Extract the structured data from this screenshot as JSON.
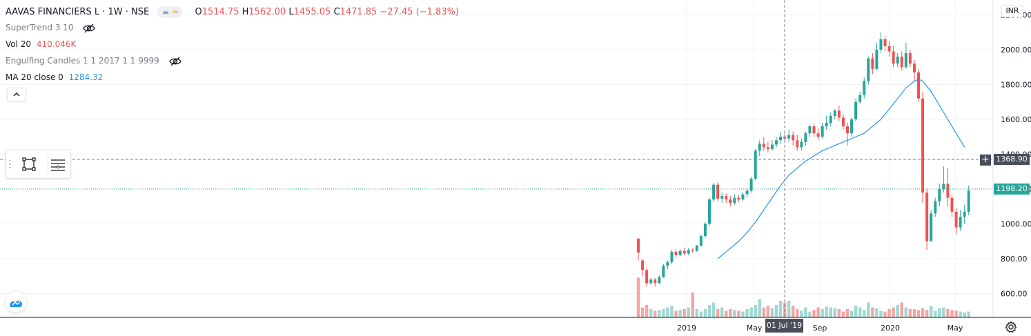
{
  "header": {
    "title": "AAVAS FINANCIERS L · 1W · NSE",
    "ohlc": {
      "o_label": "O",
      "o": "1514.75",
      "h_label": "H",
      "h": "1562.00",
      "l_label": "L",
      "l": "1455.05",
      "c_label": "C",
      "c": "1471.85",
      "change": "−27.45 (−1.83%)"
    }
  },
  "indicators": {
    "supertrend": {
      "name": "SuperTrend 3 10"
    },
    "vol": {
      "name": "Vol 20",
      "value": "410.046K",
      "value_color": "#ef5350"
    },
    "engulfing": {
      "name": "Engulfing Candles 1 1 2017 1 1 9999"
    },
    "ma": {
      "name": "MA 20 close 0",
      "value": "1284.32",
      "value_color": "#2196f3"
    }
  },
  "price_axis": {
    "currency": "INR",
    "ticks": [
      "2200.00",
      "2000.00",
      "1800.00",
      "1600.00",
      "1400.00",
      "1200.00",
      "1000.00",
      "800.00",
      "600.00"
    ],
    "crosshair_label": "1368.90",
    "last_price_label": "1198.20"
  },
  "time_axis": {
    "ticks": [
      "2019",
      "May",
      "Sep",
      "2020",
      "May"
    ],
    "crosshair_label": "01 Jul '19"
  },
  "colors": {
    "up": "#26a69a",
    "down": "#ef5350",
    "ma": "#2196f3",
    "vol_up": "#9fd8d2",
    "vol_down": "#f3a6a4",
    "grid": "#f0f3fa"
  },
  "icons": [
    "eye-off-icon",
    "collapse-chevron-icon",
    "rectangle-tool-icon",
    "lines-tool-icon",
    "tradingview-logo-icon",
    "gear-icon",
    "plus-icon"
  ],
  "chart_data": {
    "type": "candlestick",
    "title": "AAVAS FINANCIERS L · 1W · NSE",
    "y_unit": "INR",
    "ylim": [
      480,
      2260
    ],
    "x_ticks": [
      "2019",
      "May",
      "Sep",
      "2020",
      "May"
    ],
    "candles": [
      [
        915,
        835,
        920,
        790
      ],
      [
        790,
        735,
        800,
        700
      ],
      [
        735,
        660,
        745,
        640
      ],
      [
        660,
        680,
        690,
        650
      ],
      [
        680,
        660,
        690,
        640
      ],
      [
        660,
        695,
        705,
        655
      ],
      [
        695,
        760,
        770,
        690
      ],
      [
        760,
        780,
        790,
        740
      ],
      [
        780,
        840,
        850,
        770
      ],
      [
        840,
        820,
        855,
        810
      ],
      [
        820,
        845,
        855,
        815
      ],
      [
        845,
        830,
        860,
        820
      ],
      [
        830,
        850,
        860,
        820
      ],
      [
        850,
        845,
        860,
        835
      ],
      [
        845,
        875,
        880,
        840
      ],
      [
        875,
        930,
        940,
        870
      ],
      [
        930,
        1000,
        1010,
        920
      ],
      [
        1000,
        1140,
        1150,
        990
      ],
      [
        1140,
        1225,
        1235,
        1125
      ],
      [
        1225,
        1145,
        1240,
        1130
      ],
      [
        1145,
        1160,
        1180,
        1120
      ],
      [
        1160,
        1140,
        1175,
        1120
      ],
      [
        1140,
        1120,
        1160,
        1100
      ],
      [
        1120,
        1150,
        1170,
        1110
      ],
      [
        1150,
        1140,
        1165,
        1125
      ],
      [
        1140,
        1170,
        1180,
        1130
      ],
      [
        1170,
        1190,
        1200,
        1150
      ],
      [
        1190,
        1260,
        1270,
        1180
      ],
      [
        1260,
        1420,
        1430,
        1250
      ],
      [
        1420,
        1460,
        1480,
        1390
      ],
      [
        1460,
        1440,
        1500,
        1420
      ],
      [
        1440,
        1430,
        1470,
        1410
      ],
      [
        1430,
        1455,
        1480,
        1420
      ],
      [
        1455,
        1480,
        1500,
        1440
      ],
      [
        1480,
        1500,
        1530,
        1460
      ],
      [
        1500,
        1490,
        1520,
        1470
      ],
      [
        1490,
        1510,
        1540,
        1470
      ],
      [
        1510,
        1480,
        1530,
        1450
      ],
      [
        1480,
        1440,
        1510,
        1420
      ],
      [
        1440,
        1470,
        1490,
        1420
      ],
      [
        1470,
        1520,
        1530,
        1450
      ],
      [
        1520,
        1560,
        1570,
        1500
      ],
      [
        1560,
        1520,
        1580,
        1500
      ],
      [
        1520,
        1500,
        1550,
        1480
      ],
      [
        1500,
        1560,
        1580,
        1490
      ],
      [
        1560,
        1580,
        1620,
        1540
      ],
      [
        1580,
        1620,
        1640,
        1560
      ],
      [
        1620,
        1650,
        1660,
        1600
      ],
      [
        1650,
        1610,
        1680,
        1590
      ],
      [
        1610,
        1560,
        1630,
        1540
      ],
      [
        1560,
        1520,
        1580,
        1450
      ],
      [
        1520,
        1600,
        1610,
        1500
      ],
      [
        1600,
        1700,
        1720,
        1590
      ],
      [
        1700,
        1740,
        1760,
        1690
      ],
      [
        1740,
        1820,
        1840,
        1720
      ],
      [
        1820,
        1950,
        1960,
        1800
      ],
      [
        1950,
        1890,
        1980,
        1860
      ],
      [
        1890,
        2000,
        2040,
        1880
      ],
      [
        2000,
        2060,
        2100,
        1980
      ],
      [
        2060,
        2020,
        2080,
        1990
      ],
      [
        2020,
        1990,
        2050,
        1960
      ],
      [
        1990,
        1920,
        2020,
        1900
      ],
      [
        1920,
        1960,
        1980,
        1900
      ],
      [
        1960,
        1900,
        1990,
        1880
      ],
      [
        1900,
        1980,
        2040,
        1890
      ],
      [
        1980,
        1920,
        2000,
        1900
      ],
      [
        1920,
        1870,
        1940,
        1820
      ],
      [
        1870,
        1720,
        1890,
        1700
      ],
      [
        1720,
        1180,
        1760,
        1120
      ],
      [
        1180,
        900,
        1200,
        850
      ],
      [
        900,
        1060,
        1080,
        960
      ],
      [
        1060,
        1130,
        1150,
        1040
      ],
      [
        1130,
        1200,
        1230,
        1100
      ],
      [
        1200,
        1230,
        1330,
        1180
      ],
      [
        1230,
        1150,
        1320,
        1100
      ],
      [
        1150,
        1070,
        1170,
        1040
      ],
      [
        1070,
        980,
        1090,
        940
      ],
      [
        980,
        1040,
        1080,
        960
      ],
      [
        1040,
        1070,
        1110,
        1000
      ],
      [
        1070,
        1190,
        1220,
        1050
      ]
    ],
    "volume_relative": [
      0.48,
      0.12,
      0.15,
      0.1,
      0.08,
      0.09,
      0.1,
      0.12,
      0.14,
      0.08,
      0.09,
      0.1,
      0.12,
      0.3,
      0.1,
      0.07,
      0.1,
      0.15,
      0.18,
      0.1,
      0.12,
      0.08,
      0.1,
      0.09,
      0.08,
      0.07,
      0.1,
      0.12,
      0.15,
      0.22,
      0.12,
      0.14,
      0.11,
      0.15,
      0.2,
      0.18,
      0.2,
      0.14,
      0.1,
      0.08,
      0.12,
      0.07,
      0.09,
      0.12,
      0.1,
      0.13,
      0.12,
      0.11,
      0.1,
      0.07,
      0.1,
      0.08,
      0.14,
      0.12,
      0.09,
      0.18,
      0.12,
      0.11,
      0.08,
      0.07,
      0.1,
      0.12,
      0.15,
      0.18,
      0.12,
      0.1,
      0.1,
      0.09,
      0.11,
      0.09,
      0.14,
      0.08,
      0.11,
      0.12,
      0.1,
      0.09,
      0.08,
      0.07,
      0.06,
      0.07
    ],
    "ma20": [
      [
        19,
        800
      ],
      [
        20,
        820
      ],
      [
        22,
        860
      ],
      [
        24,
        900
      ],
      [
        26,
        950
      ],
      [
        28,
        1010
      ],
      [
        30,
        1080
      ],
      [
        32,
        1150
      ],
      [
        34,
        1220
      ],
      [
        36,
        1280
      ],
      [
        38,
        1320
      ],
      [
        40,
        1360
      ],
      [
        42,
        1390
      ],
      [
        44,
        1420
      ],
      [
        46,
        1440
      ],
      [
        48,
        1460
      ],
      [
        50,
        1480
      ],
      [
        52,
        1500
      ],
      [
        54,
        1520
      ],
      [
        56,
        1560
      ],
      [
        58,
        1600
      ],
      [
        60,
        1660
      ],
      [
        62,
        1720
      ],
      [
        64,
        1780
      ],
      [
        66,
        1820
      ],
      [
        67,
        1830
      ],
      [
        68,
        1820
      ],
      [
        70,
        1760
      ],
      [
        72,
        1680
      ],
      [
        74,
        1600
      ],
      [
        76,
        1520
      ],
      [
        78,
        1440
      ]
    ]
  }
}
